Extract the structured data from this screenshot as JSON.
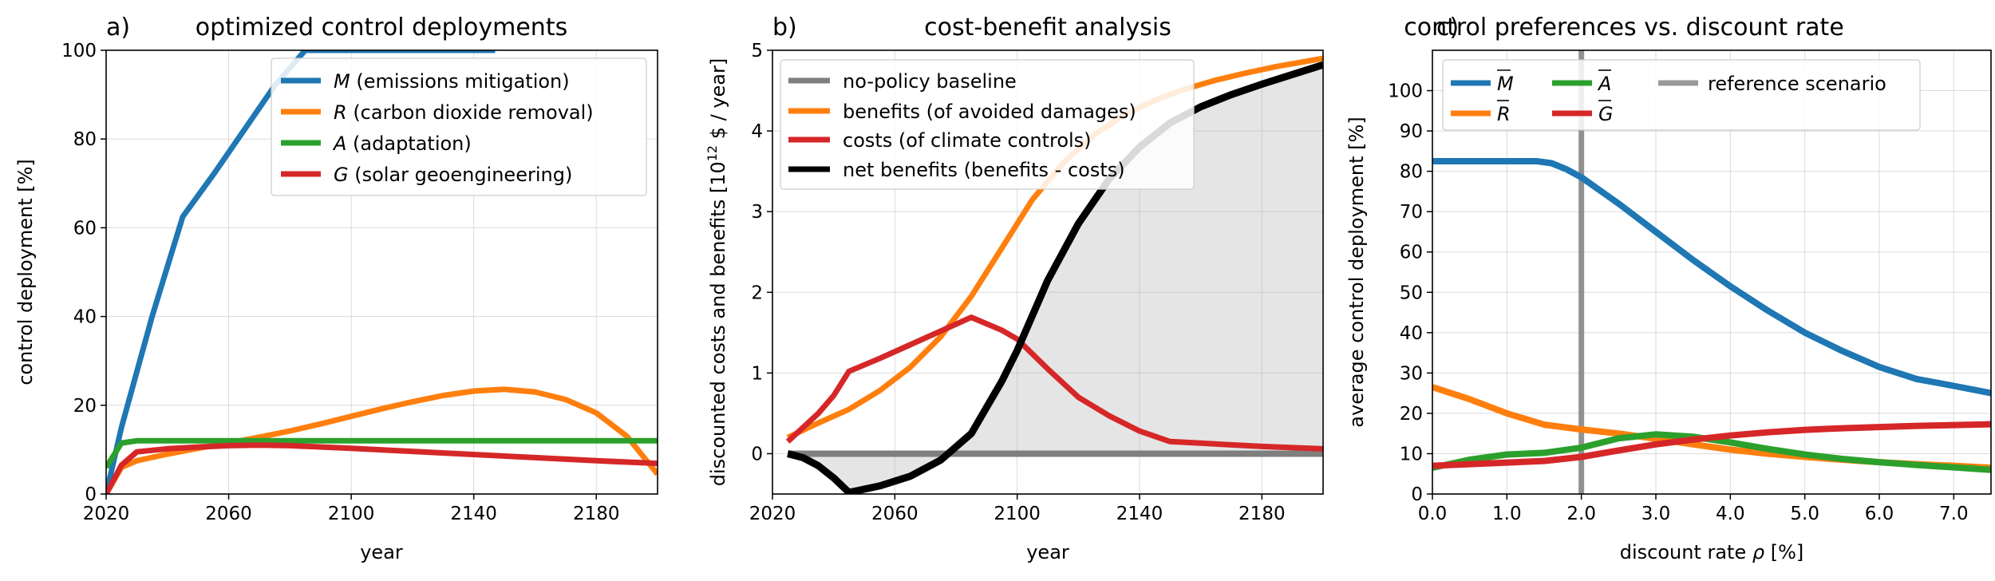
{
  "colors": {
    "blue": "#1f77b4",
    "orange": "#ff7f0e",
    "green": "#2ca02c",
    "red": "#d62728",
    "gray": "#7f7f7f",
    "lightgray": "#999999",
    "black": "#000000",
    "fill": "#e5e5e5"
  },
  "chart_data": [
    {
      "type": "line",
      "panel_label": "a)",
      "title": "optimized control deployments",
      "xlabel": "year",
      "ylabel": "control deployment [%]",
      "xlim": [
        2020,
        2200
      ],
      "ylim": [
        0,
        100
      ],
      "xticks": [
        2020,
        2060,
        2100,
        2140,
        2180
      ],
      "yticks": [
        0,
        20,
        40,
        60,
        80,
        100
      ],
      "grid": true,
      "legend_position": "upper-right",
      "series": [
        {
          "key": "M",
          "sym": "M",
          "rest": " (emissions mitigation)",
          "color": "#1f77b4",
          "x": [
            2020,
            2025,
            2035,
            2045,
            2055,
            2065,
            2075,
            2085,
            2100,
            2120,
            2147
          ],
          "y": [
            0,
            15,
            40,
            62.5,
            72,
            82,
            92,
            100,
            100,
            100,
            100
          ]
        },
        {
          "key": "R",
          "sym": "R",
          "rest": " (carbon dioxide removal)",
          "color": "#ff7f0e",
          "x": [
            2020,
            2025,
            2030,
            2040,
            2050,
            2060,
            2070,
            2080,
            2090,
            2100,
            2110,
            2120,
            2130,
            2140,
            2150,
            2160,
            2170,
            2180,
            2190,
            2200
          ],
          "y": [
            0,
            6,
            7.5,
            9,
            10.3,
            11.5,
            12.8,
            14.2,
            15.8,
            17.5,
            19.2,
            20.8,
            22.2,
            23.2,
            23.6,
            23,
            21.3,
            18.3,
            13,
            4.5
          ]
        },
        {
          "key": "A",
          "sym": "A",
          "rest": " (adaptation)",
          "color": "#2ca02c",
          "x": [
            2020,
            2025,
            2030,
            2200
          ],
          "y": [
            6,
            11.5,
            12,
            12
          ]
        },
        {
          "key": "G",
          "sym": "G",
          "rest": " (solar geoengineering)",
          "color": "#d62728",
          "x": [
            2020,
            2025,
            2030,
            2040,
            2050,
            2060,
            2070,
            2080,
            2100,
            2120,
            2140,
            2160,
            2180,
            2200
          ],
          "y": [
            0,
            6.5,
            9.5,
            10.2,
            10.6,
            10.9,
            11,
            10.9,
            10.3,
            9.6,
            8.9,
            8.2,
            7.5,
            6.9
          ]
        }
      ]
    },
    {
      "type": "line",
      "panel_label": "b)",
      "title": "cost-benefit analysis",
      "xlabel": "year",
      "ylabel_pre": "discounted costs and benefits [10",
      "ylabel_sup": "12",
      "ylabel_post": " $ / year]",
      "xlim": [
        2020,
        2200
      ],
      "ylim": [
        -0.5,
        5
      ],
      "xticks": [
        2020,
        2060,
        2100,
        2140,
        2180
      ],
      "yticks": [
        0,
        1,
        2,
        3,
        4,
        5
      ],
      "grid": true,
      "legend_position": "upper-left",
      "series": [
        {
          "key": "baseline",
          "name": "no-policy baseline",
          "color": "#7f7f7f",
          "x": [
            2025,
            2200
          ],
          "y": [
            0,
            0
          ]
        },
        {
          "key": "benefits",
          "name": "benefits (of avoided damages)",
          "color": "#ff7f0e",
          "x": [
            2025,
            2035,
            2045,
            2055,
            2065,
            2075,
            2085,
            2095,
            2105,
            2115,
            2125,
            2135,
            2145,
            2155,
            2165,
            2175,
            2185,
            2200
          ],
          "y": [
            0.2,
            0.38,
            0.55,
            0.78,
            1.07,
            1.45,
            1.95,
            2.55,
            3.15,
            3.6,
            3.95,
            4.2,
            4.38,
            4.52,
            4.63,
            4.72,
            4.8,
            4.9
          ]
        },
        {
          "key": "costs",
          "name": "costs (of climate controls)",
          "color": "#d62728",
          "x": [
            2025,
            2035,
            2040,
            2045,
            2055,
            2065,
            2075,
            2085,
            2095,
            2100,
            2110,
            2120,
            2130,
            2140,
            2150,
            2160,
            2180,
            2200
          ],
          "y": [
            0.15,
            0.5,
            0.72,
            1.02,
            1.18,
            1.35,
            1.52,
            1.69,
            1.53,
            1.42,
            1.05,
            0.7,
            0.47,
            0.28,
            0.15,
            0.13,
            0.09,
            0.06
          ]
        },
        {
          "key": "net",
          "name": "net benefits (benefits - costs)",
          "color": "#000000",
          "x": [
            2025,
            2030,
            2035,
            2040,
            2045,
            2055,
            2065,
            2075,
            2085,
            2095,
            2100,
            2110,
            2120,
            2130,
            2140,
            2150,
            2160,
            2170,
            2180,
            2190,
            2200
          ],
          "y": [
            0,
            -0.05,
            -0.15,
            -0.3,
            -0.48,
            -0.4,
            -0.28,
            -0.08,
            0.25,
            0.9,
            1.28,
            2.15,
            2.85,
            3.4,
            3.8,
            4.1,
            4.3,
            4.45,
            4.58,
            4.7,
            4.82
          ]
        }
      ]
    },
    {
      "type": "line",
      "panel_label": "c)",
      "title": "control preferences vs. discount rate",
      "xlabel_pre": "discount rate ",
      "xlabel_sym": "ρ",
      "xlabel_post": " [%]",
      "ylabel": "average control deployment [%]",
      "xlim": [
        0,
        7.5
      ],
      "ylim": [
        0,
        110
      ],
      "xticks": [
        "0.0",
        "1.0",
        "2.0",
        "3.0",
        "4.0",
        "5.0",
        "6.0",
        "7.0"
      ],
      "yticks": [
        0,
        10,
        20,
        30,
        40,
        50,
        60,
        70,
        80,
        90,
        100
      ],
      "grid": true,
      "legend_position": "upper-left",
      "reference_x": 2.0,
      "reference_label": "reference scenario",
      "series": [
        {
          "key": "M",
          "sym": "M",
          "color": "#1f77b4",
          "x": [
            0,
            0.5,
            1.0,
            1.4,
            1.6,
            1.8,
            2.0,
            2.5,
            3.0,
            3.5,
            4.0,
            4.5,
            5.0,
            5.5,
            6.0,
            6.5,
            7.0,
            7.5
          ],
          "y": [
            82.5,
            82.5,
            82.5,
            82.5,
            82,
            80.5,
            78.5,
            72,
            65,
            58,
            51.5,
            45.5,
            40,
            35.5,
            31.5,
            28.5,
            26.8,
            25
          ]
        },
        {
          "key": "R",
          "sym": "R",
          "color": "#ff7f0e",
          "x": [
            0,
            0.5,
            1.0,
            1.5,
            2.0,
            2.5,
            3.0,
            3.5,
            4.0,
            4.5,
            5.0,
            5.5,
            6.0,
            6.5,
            7.0,
            7.5
          ],
          "y": [
            26.5,
            23.5,
            20,
            17.2,
            16,
            15,
            13.7,
            12.3,
            11,
            10,
            9.2,
            8.5,
            7.9,
            7.4,
            7,
            6.5
          ]
        },
        {
          "key": "A",
          "sym": "A",
          "color": "#2ca02c",
          "x": [
            0,
            0.5,
            1.0,
            1.5,
            2.0,
            2.5,
            3.0,
            3.5,
            4.0,
            4.5,
            5.0,
            5.5,
            6.0,
            6.5,
            7.0,
            7.5
          ],
          "y": [
            6.5,
            8.5,
            9.8,
            10.2,
            11.5,
            13.8,
            14.8,
            14.2,
            12.8,
            11.2,
            9.8,
            8.7,
            7.9,
            7.2,
            6.6,
            6
          ]
        },
        {
          "key": "G",
          "sym": "G",
          "color": "#d62728",
          "x": [
            0,
            0.5,
            1.0,
            1.5,
            2.0,
            2.5,
            3.0,
            3.5,
            4.0,
            4.5,
            5.0,
            5.5,
            6.0,
            6.5,
            7.0,
            7.5
          ],
          "y": [
            7,
            7.4,
            7.8,
            8.2,
            9.2,
            10.8,
            12.3,
            13.5,
            14.5,
            15.3,
            15.9,
            16.3,
            16.6,
            16.9,
            17.1,
            17.3
          ]
        }
      ]
    }
  ]
}
